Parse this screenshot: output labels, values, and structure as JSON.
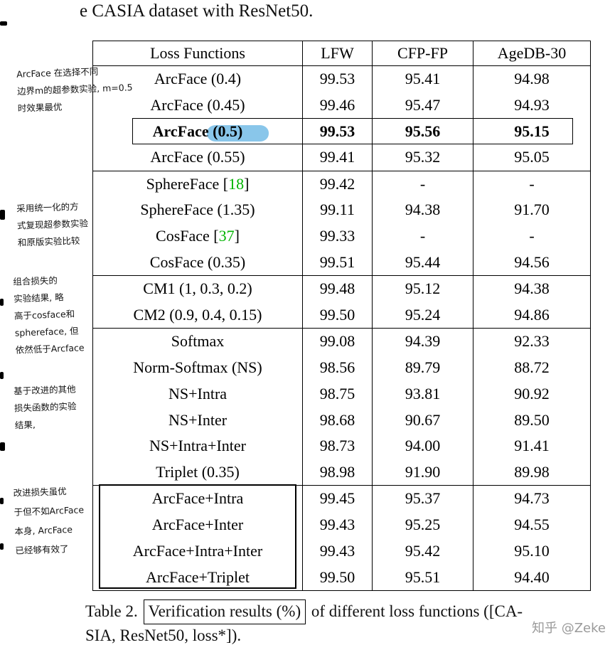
{
  "page": {
    "top_text": "e CASIA dataset with ResNet50.",
    "caption": {
      "prefix": "Table 2. ",
      "boxed": "Verification results (%)",
      "suffix": " of different loss functions ([CA-",
      "line2": "SIA, ResNet50, loss*])."
    },
    "watermark": "知乎 @Zeke"
  },
  "colors": {
    "citation_green": "#00b400",
    "highlight_blue": "#7cc0e8"
  },
  "table": {
    "headers": [
      "Loss Functions",
      "LFW",
      "CFP-FP",
      "AgeDB-30"
    ],
    "rows": [
      {
        "cells": [
          "ArcFace (0.4)",
          "99.53",
          "95.41",
          "94.98"
        ]
      },
      {
        "cells": [
          "ArcFace (0.45)",
          "99.46",
          "95.47",
          "94.93"
        ]
      },
      {
        "cells": [
          "ArcFace (0.5)",
          "99.53",
          "95.56",
          "95.15"
        ],
        "bold": true
      },
      {
        "cells": [
          "ArcFace (0.55)",
          "99.41",
          "95.32",
          "95.05"
        ],
        "rule_below": true
      },
      {
        "cells": [
          "SphereFace [18]",
          "99.42",
          "-",
          "-"
        ]
      },
      {
        "cells": [
          "SphereFace (1.35)",
          "99.11",
          "94.38",
          "91.70"
        ]
      },
      {
        "cells": [
          "CosFace [37]",
          "99.33",
          "-",
          "-"
        ]
      },
      {
        "cells": [
          "CosFace (0.35)",
          "99.51",
          "95.44",
          "94.56"
        ],
        "rule_below": true
      },
      {
        "cells": [
          "CM1 (1, 0.3, 0.2)",
          "99.48",
          "95.12",
          "94.38"
        ]
      },
      {
        "cells": [
          "CM2 (0.9, 0.4, 0.15)",
          "99.50",
          "95.24",
          "94.86"
        ],
        "rule_below": true
      },
      {
        "cells": [
          "Softmax",
          "99.08",
          "94.39",
          "92.33"
        ]
      },
      {
        "cells": [
          "Norm-Softmax (NS)",
          "98.56",
          "89.79",
          "88.72"
        ]
      },
      {
        "cells": [
          "NS+Intra",
          "98.75",
          "93.81",
          "90.92"
        ]
      },
      {
        "cells": [
          "NS+Inter",
          "98.68",
          "90.67",
          "89.50"
        ]
      },
      {
        "cells": [
          "NS+Intra+Inter",
          "98.73",
          "94.00",
          "91.41"
        ]
      },
      {
        "cells": [
          "Triplet (0.35)",
          "98.98",
          "91.90",
          "89.98"
        ],
        "rule_below": true
      },
      {
        "cells": [
          "ArcFace+Intra",
          "99.45",
          "95.37",
          "94.73"
        ]
      },
      {
        "cells": [
          "ArcFace+Inter",
          "99.43",
          "95.25",
          "94.55"
        ]
      },
      {
        "cells": [
          "ArcFace+Intra+Inter",
          "99.43",
          "95.42",
          "95.10"
        ]
      },
      {
        "cells": [
          "ArcFace+Triplet",
          "99.50",
          "95.51",
          "94.40"
        ]
      }
    ]
  },
  "annotations": [
    {
      "lines": [
        "ArcFace 在选择不同",
        "边界m的超参数实验, m=0.5",
        "时效果最优"
      ]
    },
    {
      "lines": [
        "采用统一化的方",
        "式复现超参数实验",
        "和原版实验比较"
      ]
    },
    {
      "lines": [
        "组合损失的",
        "实验结果, 略",
        "高于cosface和",
        "sphereface, 但",
        "依然低于Arcface"
      ]
    },
    {
      "lines": [
        "基于改进的其他",
        "损失函数的实验",
        "结果,"
      ]
    },
    {
      "lines": [
        "改进损失虽优",
        "于但不如ArcFace",
        "本身, ArcFace",
        "已经够有效了"
      ]
    }
  ]
}
